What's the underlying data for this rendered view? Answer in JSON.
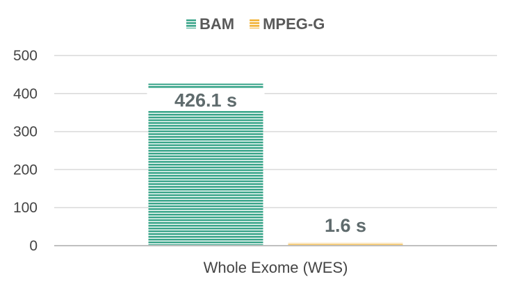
{
  "chart_data": {
    "type": "bar",
    "title": "",
    "xlabel": "",
    "ylabel": "",
    "categories": [
      "Whole Exome (WES)"
    ],
    "series": [
      {
        "name": "BAM",
        "values": [
          426.1
        ],
        "data_labels": [
          "426.1 s"
        ],
        "color": "#3aa58a",
        "pattern": "horizontal-stripes"
      },
      {
        "name": "MPEG-G",
        "values": [
          1.6
        ],
        "data_labels": [
          "1.6 s"
        ],
        "color": "#f2b233",
        "pattern": "horizontal-stripes"
      }
    ],
    "ylim": [
      0,
      500
    ],
    "yticks": [
      0,
      100,
      200,
      300,
      400,
      500
    ],
    "ytick_labels": [
      "0",
      "100",
      "200",
      "300",
      "400",
      "500"
    ],
    "grid": true,
    "legend_position": "top-center",
    "colors": {
      "grid": "#d9d9d9",
      "axis": "#bfbfbf",
      "label": "#5f6b6d"
    }
  }
}
